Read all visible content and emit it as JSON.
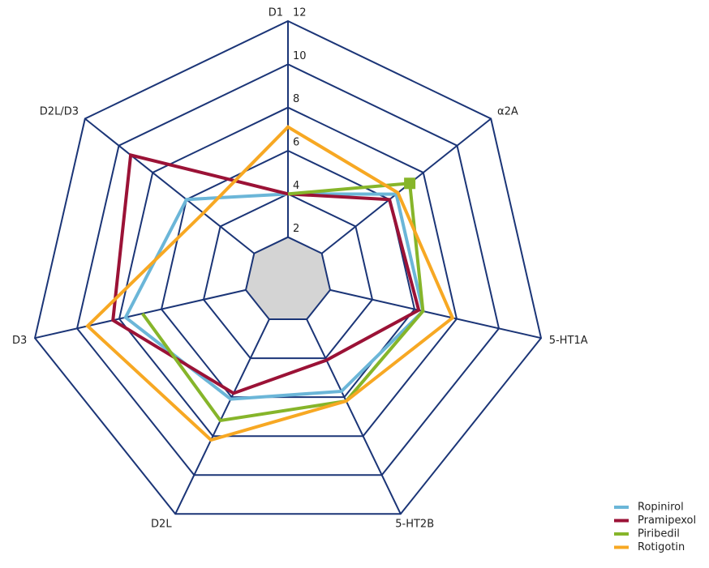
{
  "chart_data": {
    "type": "radar",
    "categories": [
      "D1",
      "α2A",
      "5-HT1A",
      "5-HT2B",
      "D2L",
      "D3",
      "D2L/D3"
    ],
    "rlim": [
      0,
      12
    ],
    "rticks": [
      2,
      4,
      6,
      8,
      10,
      12
    ],
    "series": [
      {
        "name": "Ropinirol",
        "color": "#6bb6d8",
        "values": [
          4,
          6.4,
          6.4,
          5.7,
          6.1,
          7.7,
          6.0
        ]
      },
      {
        "name": "Pramipexol",
        "color": "#9b1236",
        "values": [
          4,
          6.0,
          6.2,
          4.1,
          5.8,
          8.3,
          9.3
        ]
      },
      {
        "name": "Piribedil",
        "color": "#86b52a",
        "values": [
          4,
          7.2,
          6.4,
          6.2,
          7.2,
          6.9,
          null
        ]
      },
      {
        "name": "Rotigotin",
        "color": "#f7a823",
        "values": [
          7.1,
          6.5,
          7.8,
          6.2,
          8.2,
          9.5,
          5.0
        ]
      }
    ],
    "grid_color": "#1b3577",
    "inner_fill": "#d4d4d4",
    "legend": "lower right"
  }
}
